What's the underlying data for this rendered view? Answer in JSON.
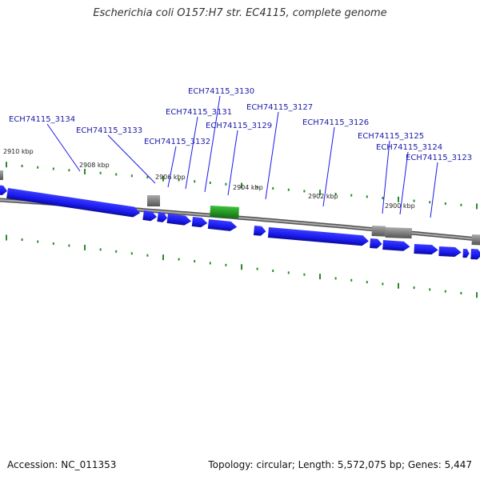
{
  "title": "Escherichia coli O157:H7 str. EC4115, complete genome",
  "footer": {
    "accession": "Accession: NC_011353",
    "summary": "Topology: circular; Length: 5,572,075 bp; Genes: 5,447"
  },
  "colors": {
    "cds": "#1a1aee",
    "cds_shade": "#0a0a9a",
    "other_gene": "#888888",
    "rna_gene": "#2a9a2a",
    "tick": "#2a8a2a",
    "label_line": "#1a1aee",
    "label_text": "#1a1aa8",
    "backbone": "#777777"
  },
  "scale_labels": [
    "2910 kbp",
    "2908 kbp",
    "2906 kbp",
    "2904 kbp",
    "2902 kbp",
    "2900 kbp"
  ],
  "gene_labels": [
    "ECH74115_3134",
    "ECH74115_3133",
    "ECH74115_3132",
    "ECH74115_3131",
    "ECH74115_3130",
    "ECH74115_3129",
    "ECH74115_3127",
    "ECH74115_3126",
    "ECH74115_3125",
    "ECH74115_3124",
    "ECH74115_3123"
  ]
}
